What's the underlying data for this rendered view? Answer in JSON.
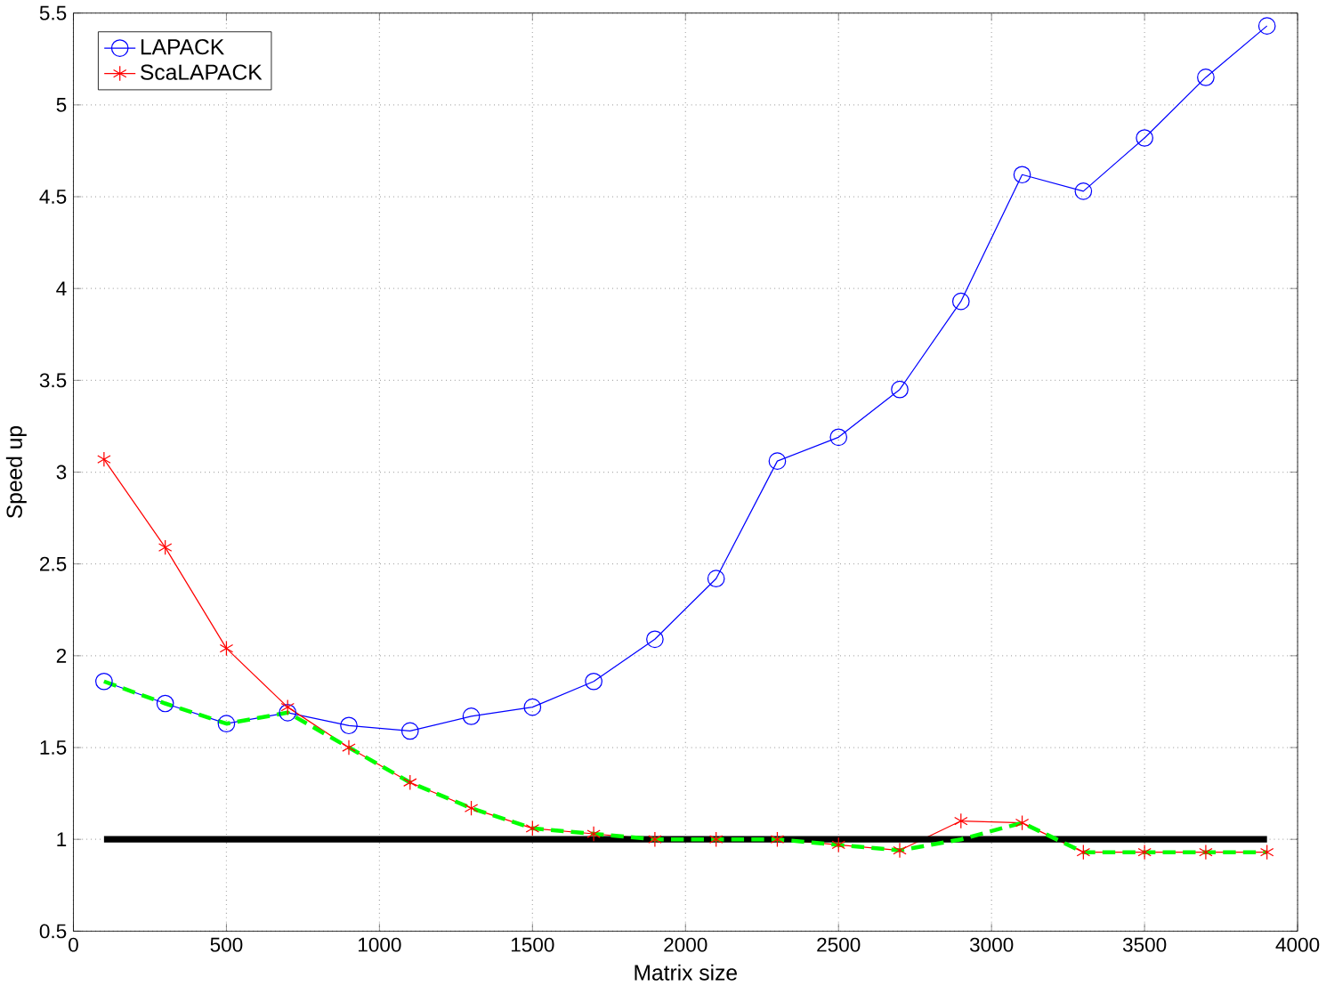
{
  "chart_data": {
    "type": "line",
    "xlabel": "Matrix size",
    "ylabel": "Speed up",
    "x": [
      100,
      300,
      500,
      700,
      900,
      1100,
      1300,
      1500,
      1700,
      1900,
      2100,
      2300,
      2500,
      2700,
      2900,
      3100,
      3300,
      3500,
      3700,
      3900
    ],
    "series": [
      {
        "name": "LAPACK",
        "color": "#0000ff",
        "marker": "circle",
        "values": [
          1.86,
          1.74,
          1.63,
          1.69,
          1.62,
          1.59,
          1.67,
          1.72,
          1.86,
          2.09,
          2.42,
          3.06,
          3.19,
          3.45,
          3.93,
          4.62,
          4.53,
          4.82,
          5.15,
          5.43
        ]
      },
      {
        "name": "ScaLAPACK",
        "color": "#ff0000",
        "marker": "cross",
        "values": [
          3.07,
          2.59,
          2.04,
          1.72,
          1.5,
          1.31,
          1.17,
          1.06,
          1.03,
          1.0,
          1.0,
          1.0,
          0.97,
          0.94,
          1.1,
          1.09,
          0.93,
          0.93,
          0.93,
          0.93
        ]
      },
      {
        "color": "#000000",
        "x": [
          100,
          3900
        ],
        "values": [
          1,
          1
        ]
      },
      {
        "color": "#00ff00",
        "line_style": "dashed",
        "values": [
          1.86,
          1.74,
          1.63,
          1.69,
          1.5,
          1.31,
          1.17,
          1.06,
          1.03,
          1.0,
          1.0,
          1.0,
          0.97,
          0.94,
          1.0,
          1.09,
          0.93,
          0.93,
          0.93,
          0.93
        ]
      }
    ],
    "xlim": [
      0,
      4000
    ],
    "xticks": [
      0,
      500,
      1000,
      1500,
      2000,
      2500,
      3000,
      3500,
      4000
    ],
    "ylim": [
      0.5,
      5.5
    ],
    "yticks": [
      0.5,
      1,
      1.5,
      2,
      2.5,
      3,
      3.5,
      4,
      4.5,
      5,
      5.5
    ],
    "grid": true,
    "legend": "top left"
  }
}
